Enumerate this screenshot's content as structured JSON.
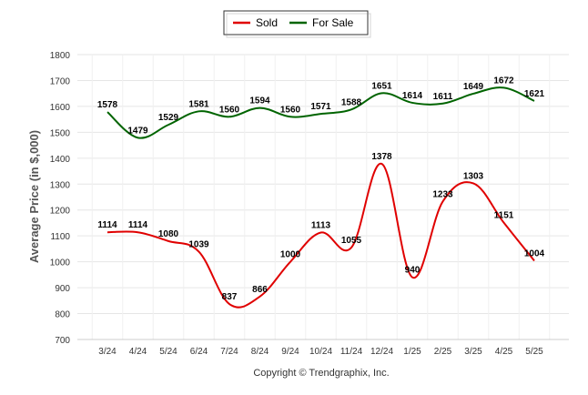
{
  "chart_data": {
    "type": "line",
    "categories": [
      "3/24",
      "4/24",
      "5/24",
      "6/24",
      "7/24",
      "8/24",
      "9/24",
      "10/24",
      "11/24",
      "12/24",
      "1/25",
      "2/25",
      "3/25",
      "4/25",
      "5/25"
    ],
    "series": [
      {
        "name": "Sold",
        "color": "#e00000",
        "values": [
          1114,
          1114,
          1080,
          1039,
          837,
          866,
          1000,
          1113,
          1055,
          1378,
          940,
          1233,
          1303,
          1151,
          1004
        ]
      },
      {
        "name": "For Sale",
        "color": "#006400",
        "values": [
          1578,
          1479,
          1529,
          1581,
          1560,
          1594,
          1560,
          1571,
          1588,
          1651,
          1614,
          1611,
          1649,
          1672,
          1621
        ]
      }
    ],
    "ylabel": "Average Price (in $,000)",
    "xlabel": "",
    "ylim": [
      700,
      1800
    ],
    "yticks": [
      700,
      800,
      900,
      1000,
      1100,
      1200,
      1300,
      1400,
      1500,
      1600,
      1700,
      1800
    ],
    "grid": true,
    "legend_position": "top-center"
  },
  "footer": {
    "copyright": "Copyright © Trendgraphix, Inc."
  }
}
